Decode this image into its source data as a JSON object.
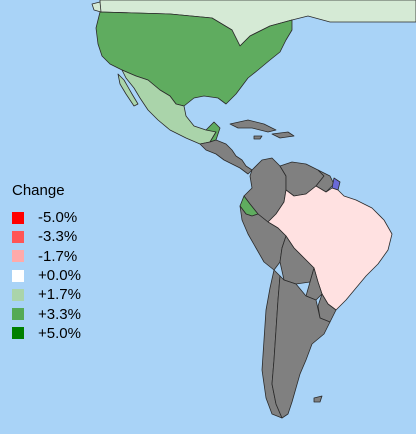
{
  "legend": {
    "title": "Change",
    "items": [
      {
        "label": "-5.0%",
        "color": "#ff0000"
      },
      {
        "label": "-3.3%",
        "color": "#ff5555"
      },
      {
        "label": "-1.7%",
        "color": "#ffaaaa"
      },
      {
        "label": "+0.0%",
        "color": "#ffffff"
      },
      {
        "label": "+1.7%",
        "color": "#aad4aa"
      },
      {
        "label": "+3.3%",
        "color": "#55aa55"
      },
      {
        "label": "+5.0%",
        "color": "#008000"
      }
    ]
  },
  "regions": [
    {
      "name": "Canada",
      "color": "#d5ead5"
    },
    {
      "name": "United States",
      "color": "#5fac5f"
    },
    {
      "name": "Mexico",
      "color": "#aad4aa"
    },
    {
      "name": "Belize",
      "color": "#5fac5f"
    },
    {
      "name": "Central America",
      "color": "#808080"
    },
    {
      "name": "Caribbean",
      "color": "#808080"
    },
    {
      "name": "Colombia",
      "color": "#808080"
    },
    {
      "name": "Venezuela",
      "color": "#808080"
    },
    {
      "name": "Guianas",
      "color": "#808080"
    },
    {
      "name": "French Guiana",
      "color": "#6a6ad8"
    },
    {
      "name": "Ecuador",
      "color": "#5fac5f"
    },
    {
      "name": "Brazil",
      "color": "#ffe1e1"
    },
    {
      "name": "Peru",
      "color": "#808080"
    },
    {
      "name": "Bolivia",
      "color": "#808080"
    },
    {
      "name": "Paraguay",
      "color": "#808080"
    },
    {
      "name": "Uruguay",
      "color": "#808080"
    },
    {
      "name": "Chile",
      "color": "#808080"
    },
    {
      "name": "Argentina",
      "color": "#808080"
    },
    {
      "name": "Falklands",
      "color": "#808080"
    }
  ]
}
